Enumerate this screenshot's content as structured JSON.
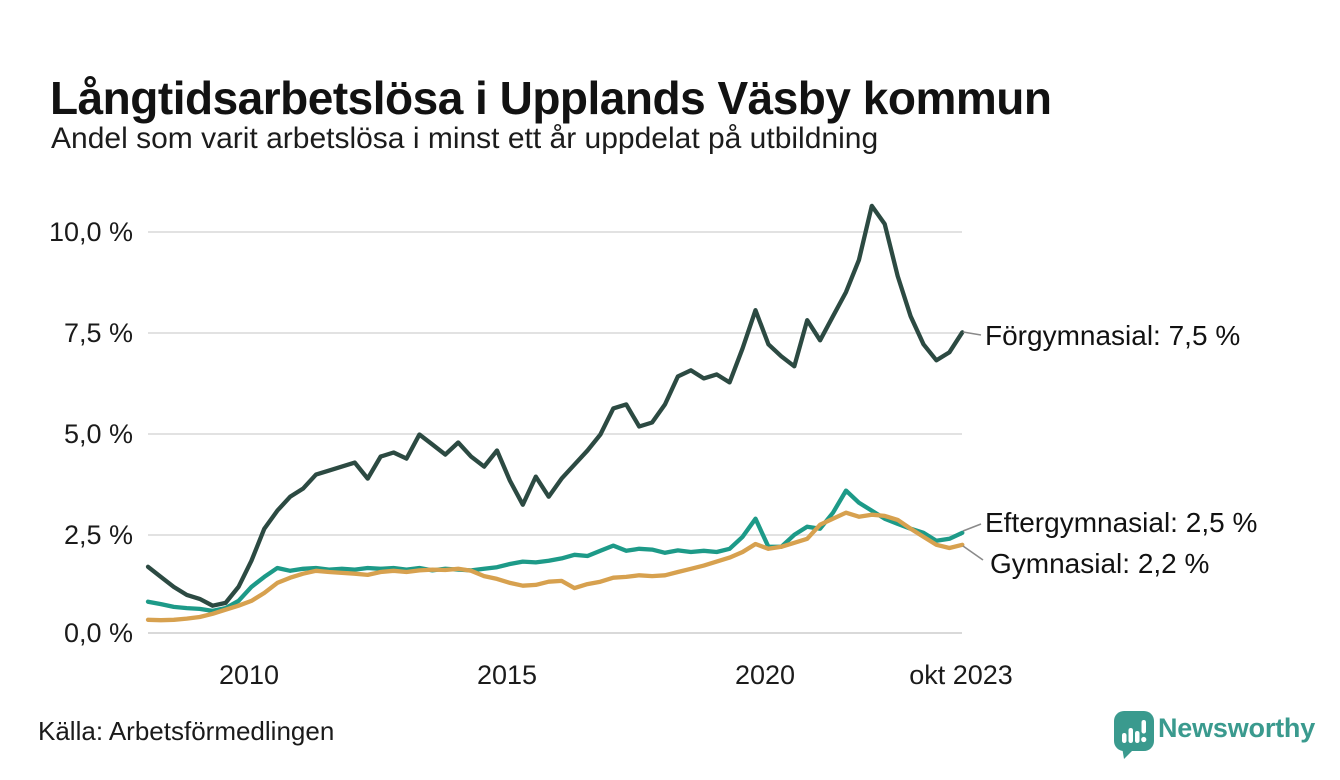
{
  "header": {
    "title": "Långtidsarbetslösa i Upplands Väsby kommun",
    "subtitle": "Andel som varit arbetslösa i minst ett år uppdelat på utbildning"
  },
  "footer": {
    "source": "Källa: Arbetsförmedlingen",
    "brand": "Newsworthy",
    "brand_color": "#3a9a8e"
  },
  "chart_data": {
    "type": "line",
    "title": "Långtidsarbetslösa i Upplands Väsby kommun",
    "subtitle": "Andel som varit arbetslösa i minst ett år uppdelat på utbildning",
    "unit": "%",
    "x_start": 2008.0,
    "x_step": 0.25,
    "x_end": 2023.75,
    "x_end_label": "okt 2023",
    "ylim": [
      0,
      10.8
    ],
    "grid": "horizontal",
    "gridline_color": "#e2e2e2",
    "yticks": [
      {
        "value": 0.0,
        "label": "0,0 %"
      },
      {
        "value": 2.5,
        "label": "2,5 %"
      },
      {
        "value": 5.0,
        "label": "5,0 %"
      },
      {
        "value": 7.5,
        "label": "7,5 %"
      },
      {
        "value": 10.0,
        "label": "10,0 %"
      }
    ],
    "xticks": [
      {
        "value": 2010,
        "label": "2010"
      },
      {
        "value": 2015,
        "label": "2015"
      },
      {
        "value": 2020,
        "label": "2020"
      },
      {
        "value": 2023.79,
        "label": "okt 2023"
      }
    ],
    "legend_position": "end-of-line-labels",
    "series": [
      {
        "id": "forgymnasial",
        "name": "Förgymnasial",
        "color": "#2c4a42",
        "end_label": "Förgymnasial: 7,5 %",
        "end_value": 7.5,
        "values": [
          1.65,
          1.4,
          1.15,
          0.95,
          0.85,
          0.68,
          0.75,
          1.15,
          1.8,
          2.6,
          3.05,
          3.4,
          3.6,
          3.95,
          4.05,
          4.15,
          4.25,
          3.85,
          4.4,
          4.5,
          4.35,
          4.95,
          4.7,
          4.45,
          4.75,
          4.4,
          4.15,
          4.55,
          3.8,
          3.2,
          3.9,
          3.4,
          3.85,
          4.2,
          4.55,
          4.95,
          5.6,
          5.7,
          5.15,
          5.25,
          5.7,
          6.4,
          6.55,
          6.35,
          6.45,
          6.25,
          7.1,
          8.05,
          7.2,
          6.9,
          6.65,
          7.8,
          7.3,
          7.9,
          8.5,
          9.3,
          10.65,
          10.2,
          8.9,
          7.9,
          7.2,
          6.8,
          7.0,
          7.5
        ]
      },
      {
        "id": "eftergymnasial",
        "name": "Eftergymnasial",
        "color": "#1d9a88",
        "end_label": "Eftergymnasial: 2,5 %",
        "end_value": 2.5,
        "values": [
          0.78,
          0.72,
          0.65,
          0.62,
          0.6,
          0.55,
          0.62,
          0.8,
          1.15,
          1.4,
          1.62,
          1.55,
          1.6,
          1.62,
          1.58,
          1.6,
          1.58,
          1.62,
          1.6,
          1.62,
          1.58,
          1.62,
          1.56,
          1.6,
          1.58,
          1.56,
          1.6,
          1.64,
          1.72,
          1.78,
          1.76,
          1.8,
          1.86,
          1.95,
          1.92,
          2.05,
          2.18,
          2.05,
          2.1,
          2.08,
          2.0,
          2.06,
          2.02,
          2.05,
          2.02,
          2.1,
          2.4,
          2.85,
          2.15,
          2.15,
          2.45,
          2.65,
          2.6,
          3.0,
          3.55,
          3.25,
          3.05,
          2.85,
          2.72,
          2.6,
          2.5,
          2.3,
          2.35,
          2.5
        ]
      },
      {
        "id": "gymnasial",
        "name": "Gymnasial",
        "color": "#d7a14f",
        "end_label": "Gymnasial: 2,2 %",
        "end_value": 2.2,
        "values": [
          0.33,
          0.32,
          0.33,
          0.36,
          0.4,
          0.48,
          0.58,
          0.68,
          0.8,
          1.0,
          1.25,
          1.38,
          1.48,
          1.55,
          1.52,
          1.5,
          1.48,
          1.45,
          1.52,
          1.55,
          1.52,
          1.56,
          1.58,
          1.57,
          1.6,
          1.55,
          1.42,
          1.35,
          1.25,
          1.18,
          1.2,
          1.28,
          1.3,
          1.12,
          1.22,
          1.28,
          1.38,
          1.4,
          1.44,
          1.42,
          1.44,
          1.52,
          1.6,
          1.68,
          1.78,
          1.88,
          2.02,
          2.22,
          2.1,
          2.15,
          2.25,
          2.35,
          2.7,
          2.85,
          3.0,
          2.9,
          2.95,
          2.92,
          2.82,
          2.6,
          2.4,
          2.2,
          2.12,
          2.2
        ]
      }
    ]
  }
}
